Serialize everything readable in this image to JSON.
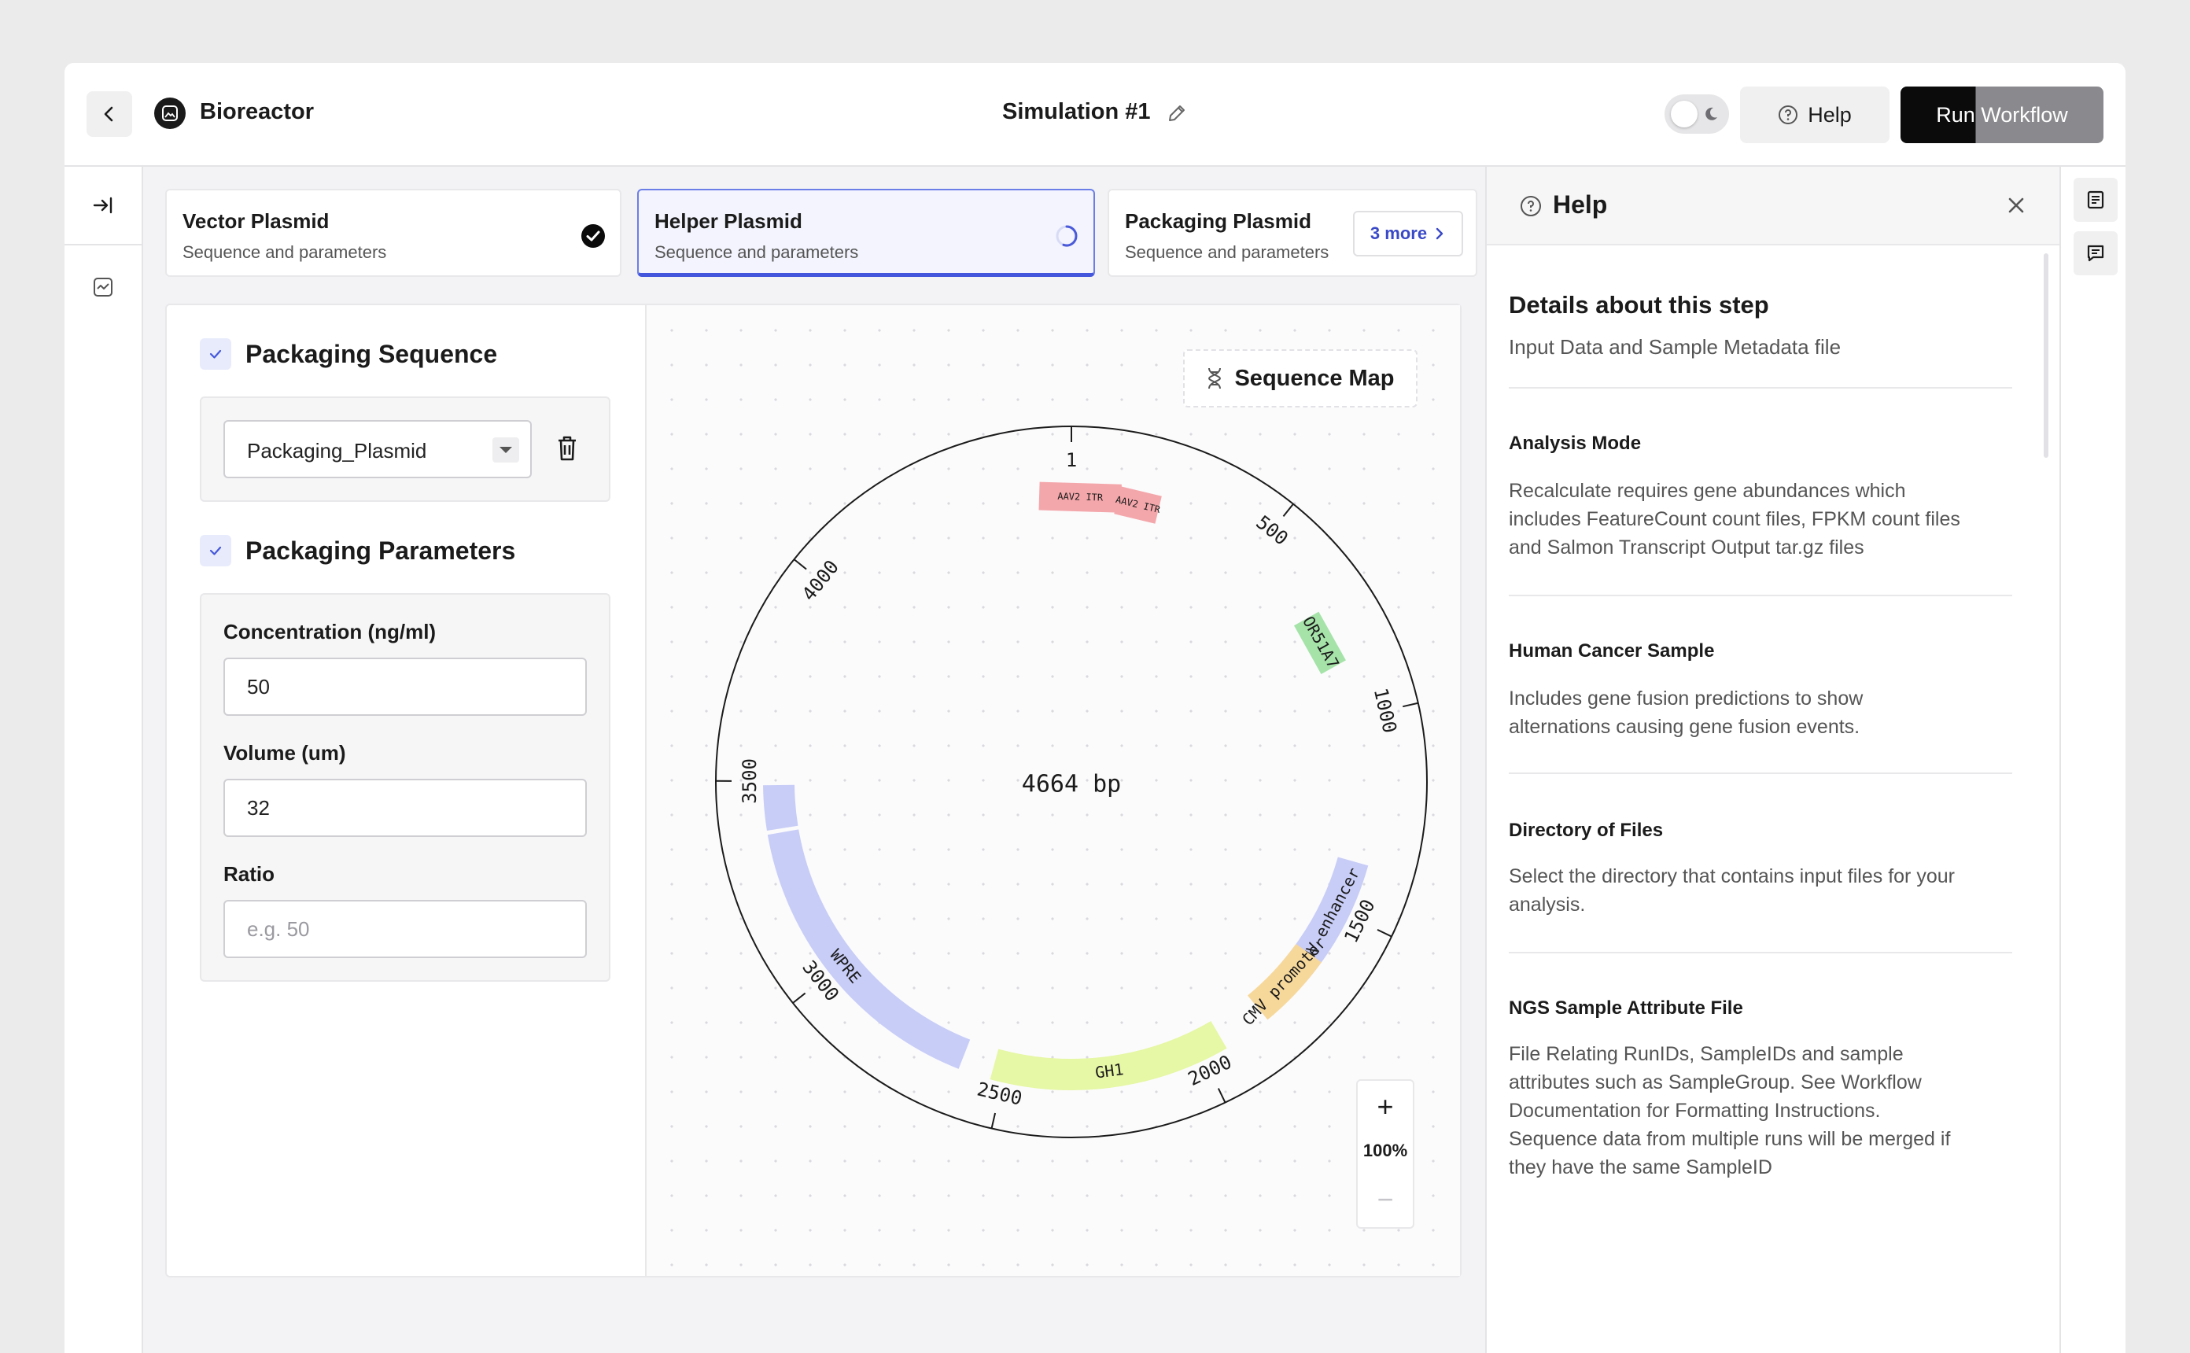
{
  "header": {
    "app_title": "Bioreactor",
    "sim_title": "Simulation #1",
    "help_label": "Help",
    "run_label": "Run Workflow"
  },
  "tabs": [
    {
      "title": "Vector Plasmid",
      "subtitle": "Sequence and parameters",
      "state": "complete"
    },
    {
      "title": "Helper Plasmid",
      "subtitle": "Sequence and parameters",
      "state": "in-progress"
    },
    {
      "title": "Packaging Plasmid",
      "subtitle": "Sequence and parameters",
      "state": "pending"
    }
  ],
  "more_tabs": "3 more",
  "form": {
    "sequence_title": "Packaging Sequence",
    "sequence_value": "Packaging_Plasmid",
    "params_title": "Packaging Parameters",
    "fields": [
      {
        "label": "Concentration (ng/ml)",
        "value": "50",
        "placeholder": ""
      },
      {
        "label": "Volume (um)",
        "value": "32",
        "placeholder": ""
      },
      {
        "label": "Ratio",
        "value": "",
        "placeholder": "e.g. 50"
      }
    ]
  },
  "map": {
    "label": "Sequence Map",
    "center_label": "4664 bp",
    "total_bp": 4664,
    "zoom": "100%",
    "ticks": [
      {
        "label": "1",
        "pos": 0
      },
      {
        "label": "500",
        "pos": 500
      },
      {
        "label": "1000",
        "pos": 1000
      },
      {
        "label": "1500",
        "pos": 1500
      },
      {
        "label": "2000",
        "pos": 2000
      },
      {
        "label": "2500",
        "pos": 2500
      },
      {
        "label": "3000",
        "pos": 3000
      },
      {
        "label": "3500",
        "pos": 3500
      },
      {
        "label": "4000",
        "pos": 4000
      }
    ],
    "features": [
      {
        "name": "AAV2 ITR",
        "start": 4580,
        "end": 130,
        "color": "#f4a7ab",
        "kind": "box"
      },
      {
        "name": "AAV2 ITR",
        "start": 120,
        "end": 230,
        "color": "#f4a7ab",
        "kind": "box"
      },
      {
        "name": "OR51A7",
        "start": 715,
        "end": 860,
        "color": "#a6e3a9",
        "kind": "box"
      },
      {
        "name": "CMV enhancer",
        "start": 1370,
        "end": 1690,
        "color": "#c8cdf7",
        "kind": "arc"
      },
      {
        "name": "CMV promoter",
        "start": 1630,
        "end": 1820,
        "color": "#f7d89b",
        "kind": "arc"
      },
      {
        "name": "GH1",
        "start": 1940,
        "end": 2530,
        "color": "#e6f7a5",
        "kind": "arc"
      },
      {
        "name": "WPRE",
        "start": 2610,
        "end": 3370,
        "color": "#c8cdf7",
        "kind": "arc"
      },
      {
        "name": "",
        "start": 3380,
        "end": 3490,
        "color": "#c8cdf7",
        "kind": "arc"
      }
    ]
  },
  "help_panel": {
    "title": "Help",
    "step_title": "Details about this step",
    "step_sub": "Input Data and Sample Metadata file",
    "sections": [
      {
        "label": "Analysis Mode",
        "lines": [
          "Recalculate requires gene abundances which",
          "includes FeatureCount count files, FPKM count files",
          "and Salmon Transcript Output tar.gz files"
        ]
      },
      {
        "label": "Human Cancer Sample",
        "lines": [
          "Includes gene fusion predictions to show",
          "alternations causing gene fusion events."
        ]
      },
      {
        "label": "Directory of Files",
        "lines": [
          "Select the directory that contains input files for your",
          "analysis."
        ]
      },
      {
        "label": "NGS Sample Attribute File",
        "lines": [
          "File Relating RunIDs, SampleIDs and sample",
          "attributes such as SampleGroup. See Workflow",
          "Documentation for Formatting Instructions.",
          "Sequence data from multiple runs will be merged if",
          "they have the same SampleID"
        ]
      }
    ]
  }
}
